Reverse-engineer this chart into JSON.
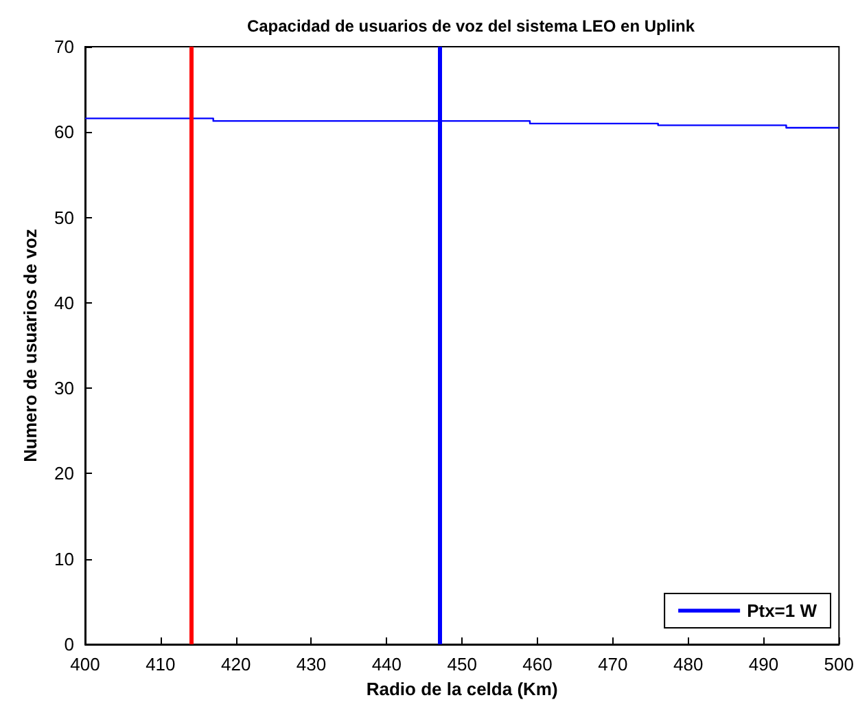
{
  "chart_data": {
    "type": "step",
    "title": "Capacidad de usuarios de voz del sistema LEO en Uplink",
    "xlabel": "Radio de la celda (Km)",
    "ylabel": "Numero de usuarios de voz",
    "x": [
      400,
      417,
      459,
      476,
      493,
      500
    ],
    "series": [
      {
        "name": "Ptx=1 W",
        "color": "#0000ff",
        "values": [
          61.6,
          61.3,
          61.0,
          60.8,
          60.5,
          60.5
        ]
      }
    ],
    "xlim": [
      400,
      500
    ],
    "xticks": [
      400,
      410,
      420,
      430,
      440,
      450,
      460,
      470,
      480,
      490,
      500
    ],
    "ylim": [
      0,
      70
    ],
    "yticks": [
      0,
      10,
      20,
      30,
      40,
      50,
      60,
      70
    ],
    "ref_lines": [
      {
        "axis": "x",
        "value": 414,
        "color": "#ff0000"
      },
      {
        "axis": "x",
        "value": 447,
        "color": "#0000ff"
      }
    ],
    "legend": "bottom right",
    "grid": false,
    "marker": "none",
    "line_style": "solid"
  }
}
